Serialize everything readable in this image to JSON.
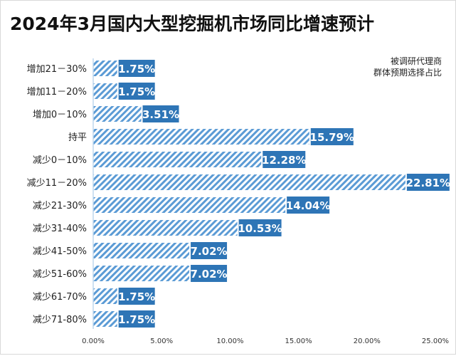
{
  "chart_data": {
    "type": "bar",
    "orientation": "horizontal",
    "title": "2024年3月国内大型挖掘机市场同比增速预计",
    "annotation": "被调研代理商\n群体预期选择占比",
    "categories": [
      "增加21－30%",
      "增加11－20%",
      "增加0－10%",
      "持平",
      "减少0－10%",
      "减少11－20%",
      "减少21-30%",
      "减少31-40%",
      "减少41-50%",
      "减少51-60%",
      "减少61-70%",
      "减少71-80%"
    ],
    "values": [
      1.75,
      1.75,
      3.51,
      15.79,
      12.28,
      22.81,
      14.04,
      10.53,
      7.02,
      7.02,
      1.75,
      1.75
    ],
    "data_labels": [
      "1.75%",
      "1.75%",
      "3.51%",
      "15.79%",
      "12.28%",
      "22.81%",
      "14.04%",
      "10.53%",
      "7.02%",
      "7.02%",
      "1.75%",
      "1.75%"
    ],
    "xlim": [
      0,
      25
    ],
    "xticks": [
      "0.00%",
      "5.00%",
      "10.00%",
      "15.00%",
      "20.00%",
      "25.00%"
    ],
    "grid": false,
    "legend": "none",
    "colors": {
      "bar_hatch": "#5b9bd5",
      "label_bg": "#2e75b6",
      "label_text": "#ffffff"
    }
  }
}
